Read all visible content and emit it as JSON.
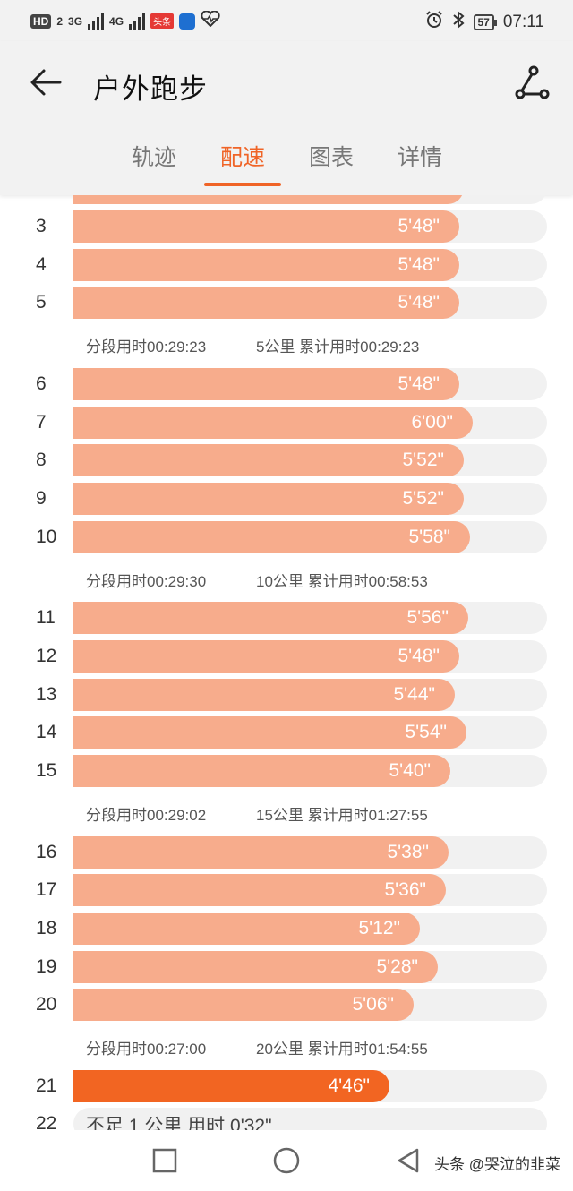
{
  "status_bar": {
    "hd": "HD",
    "hd_sub": "2",
    "net1": "3G",
    "net2": "4G",
    "app_badge": "头条",
    "battery": "57",
    "time": "07:11"
  },
  "header": {
    "title": "户外跑步",
    "tabs": [
      {
        "label": "轨迹"
      },
      {
        "label": "配速"
      },
      {
        "label": "图表"
      },
      {
        "label": "详情"
      }
    ],
    "active_tab": "配速"
  },
  "pace_list": {
    "rows": [
      {
        "km": "3",
        "pace": "5'48\"",
        "ratio": 0.815
      },
      {
        "km": "4",
        "pace": "5'48\"",
        "ratio": 0.815
      },
      {
        "km": "5",
        "pace": "5'48\"",
        "ratio": 0.815
      },
      {
        "km": "6",
        "pace": "5'48\"",
        "ratio": 0.815
      },
      {
        "km": "7",
        "pace": "6'00\"",
        "ratio": 0.843
      },
      {
        "km": "8",
        "pace": "5'52\"",
        "ratio": 0.825
      },
      {
        "km": "9",
        "pace": "5'52\"",
        "ratio": 0.825
      },
      {
        "km": "10",
        "pace": "5'58\"",
        "ratio": 0.837
      },
      {
        "km": "11",
        "pace": "5'56\"",
        "ratio": 0.833
      },
      {
        "km": "12",
        "pace": "5'48\"",
        "ratio": 0.815
      },
      {
        "km": "13",
        "pace": "5'44\"",
        "ratio": 0.806
      },
      {
        "km": "14",
        "pace": "5'54\"",
        "ratio": 0.829
      },
      {
        "km": "15",
        "pace": "5'40\"",
        "ratio": 0.796
      },
      {
        "km": "16",
        "pace": "5'38\"",
        "ratio": 0.792
      },
      {
        "km": "17",
        "pace": "5'36\"",
        "ratio": 0.787
      },
      {
        "km": "18",
        "pace": "5'12\"",
        "ratio": 0.731
      },
      {
        "km": "19",
        "pace": "5'28\"",
        "ratio": 0.769
      },
      {
        "km": "20",
        "pace": "5'06\"",
        "ratio": 0.718
      },
      {
        "km": "21",
        "pace": "4'46\"",
        "ratio": 0.667,
        "fastest": true
      }
    ],
    "summaries": [
      {
        "segment": "分段用时00:29:23",
        "cumulative": "5公里 累计用时00:29:23"
      },
      {
        "segment": "分段用时00:29:30",
        "cumulative": "10公里 累计用时00:58:53"
      },
      {
        "segment": "分段用时00:29:02",
        "cumulative": "15公里 累计用时01:27:55"
      },
      {
        "segment": "分段用时00:27:00",
        "cumulative": "20公里 累计用时01:54:55"
      }
    ],
    "partial": {
      "km": "22",
      "text": "不足 1 公里 用时 0'32\""
    }
  },
  "watermark": "头条 @哭泣的韭菜"
}
